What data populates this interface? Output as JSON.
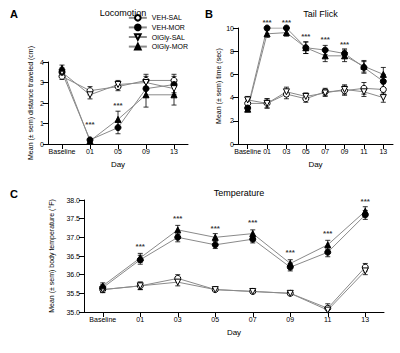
{
  "chart_data": [
    {
      "type": "line",
      "panel": "A",
      "title": "Locomotion",
      "x_label": "Day",
      "y_label": "Mean (± sem) distance traveled (cm)",
      "categories": [
        "Baseline",
        "01",
        "05",
        "09",
        "13"
      ],
      "ylim": [
        0,
        4
      ],
      "yticks": [
        0,
        1,
        2,
        3,
        4
      ],
      "grid": false,
      "legend": "upper right",
      "series": [
        {
          "name": "VEH-SAL",
          "color": "#000000",
          "marker": "circle-open",
          "values": [
            3.3,
            2.6,
            2.8,
            3.1,
            3.1
          ],
          "errors": [
            0.15,
            0.2,
            0.2,
            0.3,
            0.3
          ]
        },
        {
          "name": "VEH-MOR",
          "color": "#000000",
          "marker": "circle",
          "values": [
            3.5,
            0.2,
            0.8,
            2.7,
            2.9
          ],
          "errors": [
            0.2,
            0.05,
            0.3,
            0.4,
            0.4
          ]
        },
        {
          "name": "OlGly-SAL",
          "color": "#000000",
          "marker": "triangle-down-open",
          "values": [
            3.5,
            2.4,
            2.9,
            3.0,
            2.7
          ],
          "errors": [
            0.2,
            0.2,
            0.2,
            0.3,
            0.3
          ]
        },
        {
          "name": "OlGly-MOR",
          "color": "#000000",
          "marker": "triangle",
          "values": [
            3.7,
            0.15,
            1.2,
            2.4,
            2.4
          ],
          "errors": [
            0.15,
            0.05,
            0.4,
            0.6,
            0.5
          ]
        }
      ],
      "annotations": [
        {
          "text": "***",
          "x": "01",
          "y": 0.7
        },
        {
          "text": "***",
          "x": "05",
          "y": 1.6
        }
      ]
    },
    {
      "type": "line",
      "panel": "B",
      "title": "Tail Flick",
      "x_label": "Day",
      "y_label": "Mean (± sem) time (sec)",
      "categories": [
        "Baseline",
        "01",
        "03",
        "05",
        "07",
        "09",
        "11",
        "13"
      ],
      "ylim": [
        0,
        10
      ],
      "yticks": [
        0,
        2,
        4,
        6,
        8,
        10
      ],
      "grid": false,
      "series": [
        {
          "name": "VEH-SAL",
          "color": "#000000",
          "marker": "circle-open",
          "values": [
            3.5,
            3.5,
            4.3,
            3.9,
            4.5,
            4.6,
            4.8,
            4.7
          ],
          "errors": [
            0.3,
            0.4,
            0.4,
            0.3,
            0.3,
            0.4,
            0.5,
            0.5
          ]
        },
        {
          "name": "VEH-MOR",
          "color": "#000000",
          "marker": "circle",
          "values": [
            3.1,
            10,
            10,
            8.3,
            8.1,
            7.8,
            6.6,
            5.4
          ],
          "errors": [
            0.2,
            0.1,
            0.1,
            0.5,
            0.4,
            0.4,
            0.5,
            0.6
          ]
        },
        {
          "name": "OlGly-SAL",
          "color": "#000000",
          "marker": "triangle-down-open",
          "values": [
            3.8,
            3.5,
            4.5,
            4.1,
            4.4,
            4.7,
            4.5,
            4.0
          ],
          "errors": [
            0.3,
            0.4,
            0.4,
            0.3,
            0.3,
            0.4,
            0.4,
            0.4
          ]
        },
        {
          "name": "OlGly-MOR",
          "color": "#000000",
          "marker": "triangle",
          "values": [
            3.0,
            9.5,
            9.6,
            8.3,
            7.6,
            7.6,
            6.7,
            6.0
          ],
          "errors": [
            0.2,
            0.3,
            0.3,
            0.5,
            0.5,
            0.5,
            0.5,
            0.6
          ]
        }
      ],
      "annotations": [
        {
          "text": "***",
          "x": "01",
          "y": 10
        },
        {
          "text": "***",
          "x": "03",
          "y": 10
        },
        {
          "text": "***",
          "x": "05",
          "y": 8.8
        },
        {
          "text": "***",
          "x": "07",
          "y": 8.5
        },
        {
          "text": "***",
          "x": "09",
          "y": 8.1
        }
      ]
    },
    {
      "type": "line",
      "panel": "C",
      "title": "Temperature",
      "x_label": "Day",
      "y_label": "Mean (± sem) body temperature (°F)",
      "categories": [
        "Baseline",
        "01",
        "03",
        "05",
        "07",
        "09",
        "11",
        "13"
      ],
      "ylim": [
        35,
        38
      ],
      "yticks": [
        {
          "value": 35,
          "label": "35.0"
        },
        35.5,
        {
          "value": 36,
          "label": "36.0"
        },
        36.5,
        {
          "value": 37,
          "label": "37.0"
        },
        37.5,
        {
          "value": 38,
          "label": "38.0"
        }
      ],
      "grid": false,
      "series": [
        {
          "name": "VEH-SAL",
          "color": "#000000",
          "marker": "circle-open",
          "values": [
            35.6,
            35.7,
            35.9,
            35.6,
            35.55,
            35.5,
            35.1,
            36.2
          ],
          "errors": [
            0.08,
            0.1,
            0.1,
            0.05,
            0.05,
            0.05,
            0.12,
            0.1
          ]
        },
        {
          "name": "VEH-MOR",
          "color": "#000000",
          "marker": "circle",
          "values": [
            35.65,
            36.4,
            37.0,
            36.8,
            36.95,
            36.2,
            36.6,
            37.6
          ],
          "errors": [
            0.08,
            0.12,
            0.12,
            0.1,
            0.1,
            0.1,
            0.12,
            0.12
          ]
        },
        {
          "name": "OlGly-SAL",
          "color": "#000000",
          "marker": "triangle-down-open",
          "values": [
            35.6,
            35.7,
            35.8,
            35.6,
            35.55,
            35.5,
            35.05,
            36.1
          ],
          "errors": [
            0.08,
            0.1,
            0.1,
            0.05,
            0.05,
            0.05,
            0.1,
            0.1
          ]
        },
        {
          "name": "OlGly-MOR",
          "color": "#000000",
          "marker": "triangle",
          "values": [
            35.7,
            36.45,
            37.2,
            37.0,
            37.1,
            36.3,
            36.8,
            37.7
          ],
          "errors": [
            0.08,
            0.12,
            0.12,
            0.1,
            0.1,
            0.1,
            0.12,
            0.12
          ]
        }
      ],
      "annotations": [
        {
          "text": "***",
          "x": "01",
          "y": 36.6
        },
        {
          "text": "***",
          "x": "03",
          "y": 37.35
        },
        {
          "text": "***",
          "x": "05",
          "y": 37.1
        },
        {
          "text": "***",
          "x": "07",
          "y": 37.25
        },
        {
          "text": "***",
          "x": "09",
          "y": 36.45
        },
        {
          "text": "***",
          "x": "11",
          "y": 36.95
        },
        {
          "text": "***",
          "x": "13",
          "y": 37.8
        }
      ]
    }
  ]
}
